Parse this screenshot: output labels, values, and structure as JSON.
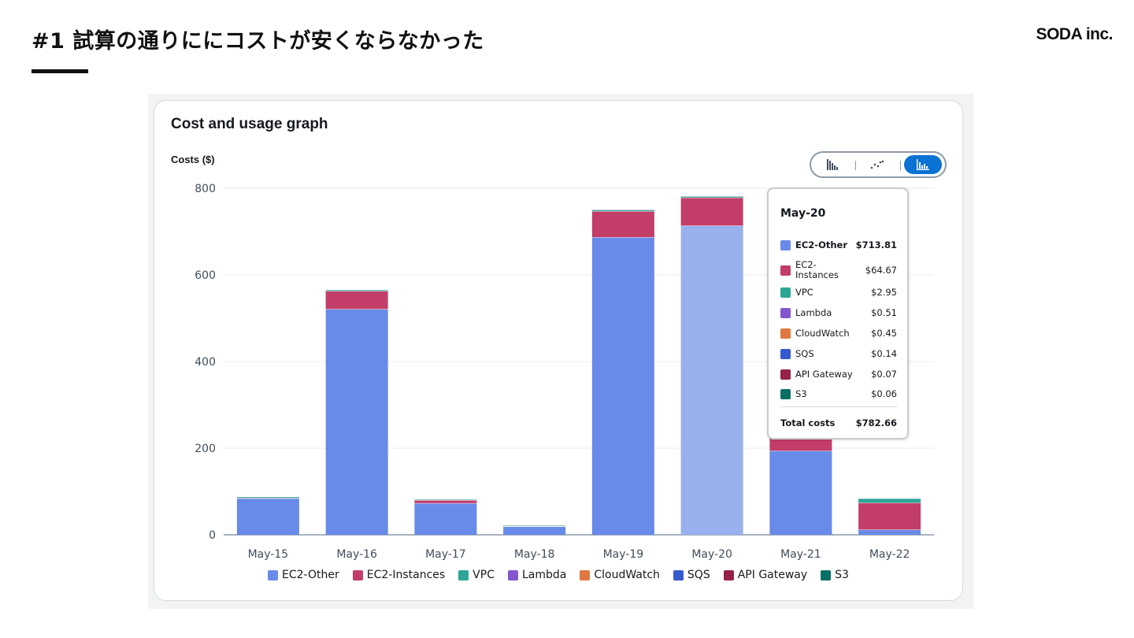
{
  "slide": {
    "title": "#1 試算の通りににコストが安くならなかった",
    "brand": "SODA inc."
  },
  "card": {
    "title": "Cost and usage graph",
    "axis_title": "Costs ($)"
  },
  "toggle": {
    "options": [
      "bar-chart-icon",
      "line-chart-icon",
      "stacked-bar-chart-icon"
    ],
    "selected": "stacked-bar-chart-icon"
  },
  "colors": {
    "EC2-Other": "#688ae8",
    "EC2-Instances": "#c33d69",
    "VPC": "#2ea597",
    "Lambda": "#8456ce",
    "CloudWatch": "#e07941",
    "SQS": "#3759ce",
    "API Gateway": "#962249",
    "S3": "#096f64",
    "highlight": "#98b0ee",
    "toggle_active": "#0972d3"
  },
  "chart_data": {
    "type": "bar",
    "stacked": true,
    "categories": [
      "May-15",
      "May-16",
      "May-17",
      "May-18",
      "May-19",
      "May-20",
      "May-21",
      "May-22"
    ],
    "series": [
      {
        "name": "EC2-Other",
        "values": [
          84,
          521,
          73,
          19,
          687,
          713.81,
          194,
          12
        ]
      },
      {
        "name": "EC2-Instances",
        "values": [
          1,
          42,
          7,
          1,
          60,
          64.67,
          40,
          62
        ]
      },
      {
        "name": "VPC",
        "values": [
          3,
          3,
          2,
          2,
          3,
          2.95,
          3,
          10
        ]
      },
      {
        "name": "Lambda",
        "values": [
          0,
          0,
          0,
          0,
          0.5,
          0.51,
          0,
          0
        ]
      },
      {
        "name": "CloudWatch",
        "values": [
          0,
          0,
          0,
          0,
          0.5,
          0.45,
          0,
          0
        ]
      },
      {
        "name": "SQS",
        "values": [
          0,
          0,
          0,
          0,
          0.1,
          0.14,
          0,
          0
        ]
      },
      {
        "name": "API Gateway",
        "values": [
          0,
          0,
          0,
          0,
          0.1,
          0.07,
          0,
          0
        ]
      },
      {
        "name": "S3",
        "values": [
          0,
          0,
          0,
          0,
          0.1,
          0.06,
          0,
          0
        ]
      }
    ],
    "ylabel": "Costs ($)",
    "yticks": [
      0,
      200,
      400,
      600,
      800
    ],
    "ylim": [
      0,
      800
    ],
    "grid": true,
    "highlighted_category": "May-20",
    "legend_position": "bottom-center"
  },
  "tooltip": {
    "header": "May-20",
    "rows": [
      {
        "name": "EC2-Other",
        "value": "$713.81"
      },
      {
        "name": "EC2-Instances",
        "value": "$64.67"
      },
      {
        "name": "VPC",
        "value": "$2.95"
      },
      {
        "name": "Lambda",
        "value": "$0.51"
      },
      {
        "name": "CloudWatch",
        "value": "$0.45"
      },
      {
        "name": "SQS",
        "value": "$0.14"
      },
      {
        "name": "API Gateway",
        "value": "$0.07"
      },
      {
        "name": "S3",
        "value": "$0.06"
      }
    ],
    "total_label": "Total costs",
    "total_value": "$782.66"
  }
}
